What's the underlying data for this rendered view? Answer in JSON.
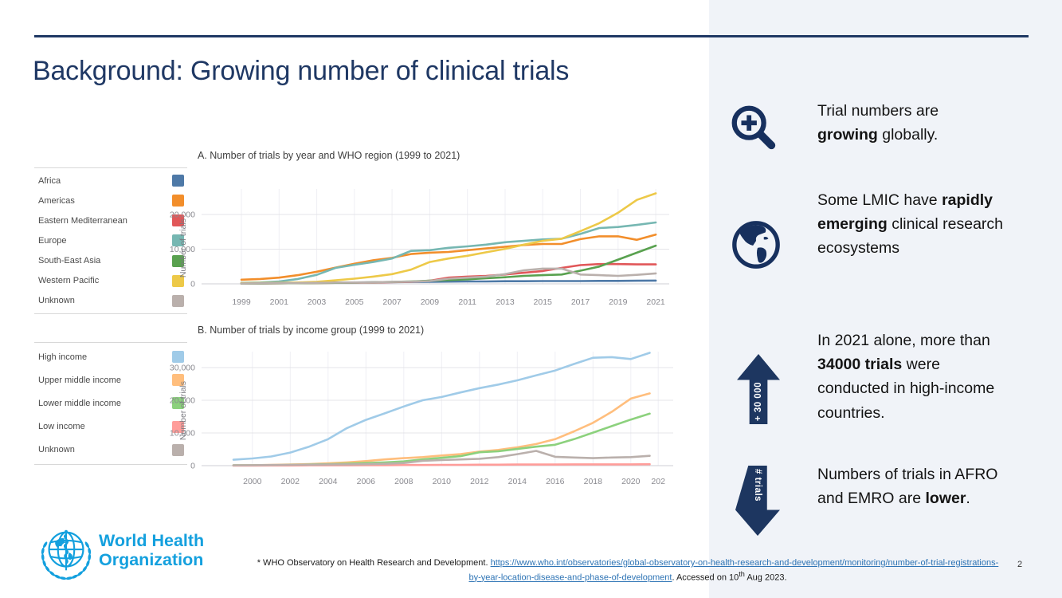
{
  "slide": {
    "title": "Background: Growing number of clinical trials"
  },
  "colors": {
    "navy": "#1f3864",
    "icon_navy": "#17305e",
    "who_blue": "#14a0de",
    "panel_bg": "#f0f3f8",
    "link_blue": "#2e74b5"
  },
  "legend_region": {
    "items": [
      {
        "label": "Africa",
        "color": "#4e79a7"
      },
      {
        "label": "Americas",
        "color": "#f28e2b"
      },
      {
        "label": "Eastern Mediterranean",
        "color": "#e15759"
      },
      {
        "label": "Europe",
        "color": "#76b7b2"
      },
      {
        "label": "South-East Asia",
        "color": "#59a14f"
      },
      {
        "label": "Western Pacific",
        "color": "#edc948"
      },
      {
        "label": "Unknown",
        "color": "#bab0ac"
      }
    ]
  },
  "legend_income": {
    "items": [
      {
        "label": "High income",
        "color": "#a0cbe8"
      },
      {
        "label": "Upper middle income",
        "color": "#ffbe7d"
      },
      {
        "label": "Lower middle income",
        "color": "#8cd17d"
      },
      {
        "label": "Low income",
        "color": "#ff9d9a"
      },
      {
        "label": "Unknown",
        "color": "#bab0ac"
      }
    ]
  },
  "chart_data": [
    {
      "type": "line",
      "title": "A. Number of trials by year and WHO region (1999 to 2021)",
      "ylabel": "Number of trials",
      "xlabel": "",
      "ylim": [
        0,
        27000
      ],
      "grid": true,
      "legend_position": "left",
      "x": [
        1999,
        2000,
        2001,
        2002,
        2003,
        2004,
        2005,
        2006,
        2007,
        2008,
        2009,
        2010,
        2011,
        2012,
        2013,
        2014,
        2015,
        2016,
        2017,
        2018,
        2019,
        2020,
        2021
      ],
      "x_tick_years": [
        1999,
        2001,
        2003,
        2005,
        2007,
        2009,
        2011,
        2013,
        2015,
        2017,
        2019,
        2021
      ],
      "x_tick_labels": [
        "1999",
        "2001",
        "2003",
        "2005",
        "2007",
        "2009",
        "2011",
        "2013",
        "2015",
        "2017",
        "2019",
        "2021"
      ],
      "y_ticks": [
        {
          "v": 0,
          "label": "0"
        },
        {
          "v": 10000,
          "label": "10,000"
        },
        {
          "v": 20000,
          "label": "20,000"
        }
      ],
      "series": [
        {
          "name": "Africa",
          "color": "#4e79a7",
          "values": [
            100,
            150,
            200,
            250,
            300,
            350,
            400,
            450,
            500,
            550,
            600,
            650,
            700,
            700,
            750,
            750,
            800,
            800,
            800,
            850,
            850,
            900,
            950
          ]
        },
        {
          "name": "Americas",
          "color": "#f28e2b",
          "values": [
            1200,
            1400,
            1800,
            2500,
            3500,
            4700,
            5800,
            6800,
            7500,
            8600,
            9000,
            9200,
            9700,
            10200,
            10700,
            11200,
            11500,
            11500,
            12900,
            13700,
            13700,
            12700,
            14200
          ]
        },
        {
          "name": "Eastern Mediterranean",
          "color": "#e15759",
          "values": [
            100,
            100,
            150,
            200,
            250,
            300,
            350,
            400,
            500,
            600,
            900,
            1800,
            2100,
            2300,
            2700,
            3200,
            3700,
            4600,
            5400,
            5700,
            5700,
            5600,
            5600
          ]
        },
        {
          "name": "Europe",
          "color": "#76b7b2",
          "values": [
            300,
            400,
            700,
            1400,
            2600,
            4600,
            5500,
            6300,
            7300,
            9500,
            9700,
            10400,
            10800,
            11300,
            12000,
            12400,
            12800,
            13000,
            14400,
            16100,
            16400,
            17000,
            17700
          ]
        },
        {
          "name": "South-East Asia",
          "color": "#59a14f",
          "values": [
            100,
            100,
            150,
            200,
            250,
            300,
            350,
            450,
            550,
            700,
            900,
            1100,
            1300,
            1600,
            1900,
            2300,
            2500,
            2700,
            3800,
            5000,
            7000,
            9000,
            11000
          ]
        },
        {
          "name": "Western Pacific",
          "color": "#edc948",
          "values": [
            200,
            250,
            300,
            400,
            600,
            1000,
            1500,
            2100,
            2800,
            4100,
            6300,
            7300,
            8100,
            9100,
            10100,
            11300,
            12400,
            13000,
            15200,
            17500,
            20500,
            24200,
            26100
          ]
        },
        {
          "name": "Unknown",
          "color": "#bab0ac",
          "values": [
            100,
            150,
            200,
            250,
            300,
            350,
            400,
            450,
            550,
            650,
            800,
            1500,
            1800,
            2100,
            2800,
            3900,
            4400,
            4400,
            2700,
            2500,
            2300,
            2600,
            3000
          ]
        }
      ]
    },
    {
      "type": "line",
      "title": "B. Number of trials by income group (1999 to 2021)",
      "ylabel": "Number of trials",
      "xlabel": "",
      "ylim": [
        0,
        35000
      ],
      "grid": true,
      "legend_position": "left",
      "x": [
        1999,
        2000,
        2001,
        2002,
        2003,
        2004,
        2005,
        2006,
        2007,
        2008,
        2009,
        2010,
        2011,
        2012,
        2013,
        2014,
        2015,
        2016,
        2017,
        2018,
        2019,
        2020,
        2021
      ],
      "x_tick_years": [
        2000,
        2002,
        2004,
        2006,
        2008,
        2010,
        2012,
        2014,
        2016,
        2018,
        2020,
        2021.45
      ],
      "x_tick_labels": [
        "2000",
        "2002",
        "2004",
        "2006",
        "2008",
        "2010",
        "2012",
        "2014",
        "2016",
        "2018",
        "2020",
        "202"
      ],
      "y_ticks": [
        {
          "v": 0,
          "label": "0"
        },
        {
          "v": 10000,
          "label": "10,000"
        },
        {
          "v": 20000,
          "label": "20,000"
        },
        {
          "v": 30000,
          "label": "30,000"
        }
      ],
      "series": [
        {
          "name": "High income",
          "color": "#a0cbe8",
          "values": [
            1800,
            2200,
            2800,
            4000,
            5800,
            8100,
            11500,
            14000,
            16000,
            18100,
            20000,
            21000,
            22400,
            23700,
            24800,
            26100,
            27600,
            29100,
            31100,
            33000,
            33200,
            32600,
            34500
          ]
        },
        {
          "name": "Upper middle income",
          "color": "#ffbe7d",
          "values": [
            100,
            150,
            250,
            350,
            500,
            700,
            1000,
            1400,
            1900,
            2300,
            2600,
            3100,
            3500,
            4300,
            4800,
            5600,
            6600,
            8100,
            10500,
            13100,
            16500,
            20500,
            22100
          ]
        },
        {
          "name": "Lower middle income",
          "color": "#8cd17d",
          "values": [
            100,
            100,
            150,
            250,
            350,
            450,
            600,
            800,
            1000,
            1300,
            1900,
            2400,
            2900,
            4100,
            4400,
            5100,
            5800,
            6400,
            8100,
            10100,
            12100,
            14100,
            15900
          ]
        },
        {
          "name": "Low income",
          "color": "#ff9d9a",
          "values": [
            0,
            0,
            50,
            50,
            100,
            100,
            100,
            150,
            150,
            200,
            200,
            250,
            250,
            300,
            300,
            350,
            350,
            350,
            400,
            400,
            400,
            400,
            450
          ]
        },
        {
          "name": "Unknown",
          "color": "#bab0ac",
          "values": [
            100,
            150,
            200,
            250,
            300,
            350,
            400,
            450,
            550,
            800,
            1500,
            1700,
            1900,
            2100,
            2600,
            3500,
            4500,
            2700,
            2500,
            2300,
            2500,
            2600,
            3000
          ]
        }
      ]
    }
  ],
  "sidebar": {
    "items": [
      {
        "icon": "magnifier-plus-icon",
        "pre": "Trial numbers are ",
        "bold": "growing",
        "post": " globally."
      },
      {
        "icon": "globe-americas-icon",
        "pre": "Some LMIC have ",
        "bold": "rapidly emerging",
        "post": " clinical research ecosystems"
      },
      {
        "icon": "up-arrow",
        "arrow_label": "+ 30 000",
        "pre": "In 2021 alone, more than ",
        "bold": "34000 trials",
        "post": " were conducted in high-income countries."
      },
      {
        "icon": "down-arrow",
        "arrow_label": "# trials",
        "pre": "Numbers of trials in AFRO and EMRO are ",
        "bold": "lower",
        "post": "."
      }
    ]
  },
  "footer": {
    "logo_line1": "World Health",
    "logo_line2": "Organization",
    "footnote_prefix": "* WHO Observatory on Health Research and Development. ",
    "footnote_link": "https://www.who.int/observatories/global-observatory-on-health-research-and-development/monitoring/number-of-trial-registrations-by-year-location-disease-and-phase-of-development",
    "footnote_mid": ". Accessed on 10",
    "footnote_sup": "th",
    "footnote_end": " Aug 2023.",
    "page_number": "2"
  }
}
